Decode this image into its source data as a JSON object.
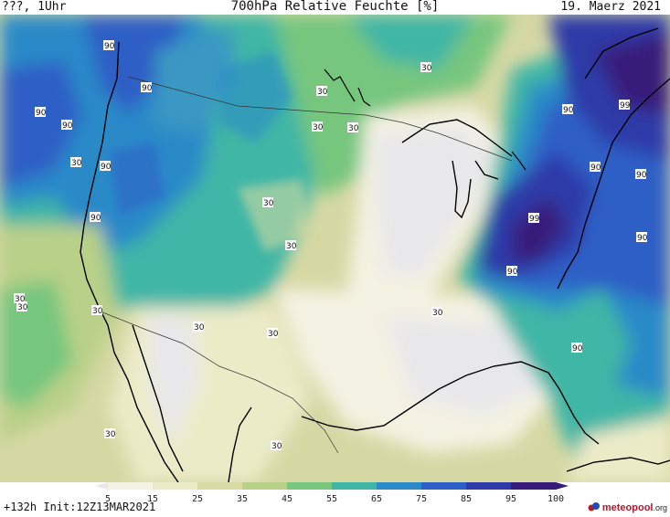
{
  "header": {
    "left": "???, 1Uhr",
    "title": "700hPa Relative Feuchte [%]",
    "right": "19. Maerz 2021"
  },
  "footer": {
    "run_info": "+132h Init:12Z13MAR2021",
    "brand_main": "meteopool",
    "brand_tld": ".org"
  },
  "legend": {
    "ticks": [
      "5",
      "15",
      "25",
      "35",
      "45",
      "55",
      "65",
      "75",
      "85",
      "95",
      "100"
    ],
    "colors": [
      "#e8e8ea",
      "#f4f2e2",
      "#ecebc8",
      "#d9dba3",
      "#b9d088",
      "#76c67e",
      "#3fb6a6",
      "#2b8ac8",
      "#2d5fc6",
      "#2d3aa8",
      "#371b7a"
    ]
  },
  "contour_labels": [
    "90",
    "90",
    "90",
    "90",
    "90",
    "90",
    "30",
    "30",
    "30",
    "30",
    "30",
    "30",
    "30",
    "30",
    "30",
    "30",
    "30",
    "30",
    "30",
    "30",
    "90",
    "99",
    "90",
    "90",
    "99",
    "90",
    "90",
    "90",
    "30"
  ]
}
